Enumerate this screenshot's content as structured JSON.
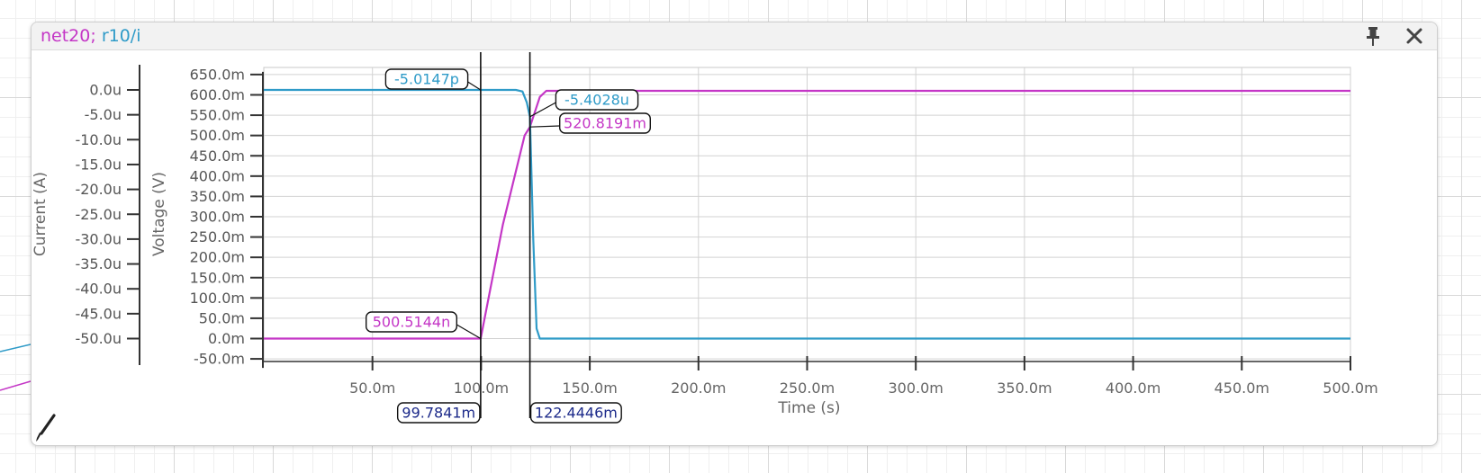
{
  "window": {
    "title_parts": [
      {
        "text": "net20",
        "color": "#c436c6"
      },
      {
        "text": "; ",
        "color": "#c436c6"
      },
      {
        "text": "r10/i",
        "color": "#2f9bc8"
      }
    ],
    "pin_icon": "pin-icon",
    "close_icon": "close-icon",
    "tool_icon": "brush-icon"
  },
  "colors": {
    "net20": "#c436c6",
    "r10_i": "#2f9bc8",
    "marker": "#1c2a8a",
    "cursor": "#111111",
    "grid": "#d2d2d2"
  },
  "chart_data": {
    "type": "line",
    "xlabel": "Time (s)",
    "ylabel_left": "Current (A)",
    "ylabel_right": "Voltage (V)",
    "grid": true,
    "x_range": [
      0,
      500
    ],
    "x_ticks": [
      {
        "v": 50,
        "label": "50.0m"
      },
      {
        "v": 100,
        "label": "100.0m"
      },
      {
        "v": 150,
        "label": "150.0m"
      },
      {
        "v": 200,
        "label": "200.0m"
      },
      {
        "v": 250,
        "label": "250.0m"
      },
      {
        "v": 300,
        "label": "300.0m"
      },
      {
        "v": 350,
        "label": "350.0m"
      },
      {
        "v": 400,
        "label": "400.0m"
      },
      {
        "v": 450,
        "label": "450.0m"
      },
      {
        "v": 500,
        "label": "500.0m"
      }
    ],
    "voltage_range": [
      -50,
      650
    ],
    "voltage_ticks": [
      {
        "v": 650,
        "label": "650.0m"
      },
      {
        "v": 600,
        "label": "600.0m"
      },
      {
        "v": 550,
        "label": "550.0m"
      },
      {
        "v": 500,
        "label": "500.0m"
      },
      {
        "v": 450,
        "label": "450.0m"
      },
      {
        "v": 400,
        "label": "400.0m"
      },
      {
        "v": 350,
        "label": "350.0m"
      },
      {
        "v": 300,
        "label": "300.0m"
      },
      {
        "v": 250,
        "label": "250.0m"
      },
      {
        "v": 200,
        "label": "200.0m"
      },
      {
        "v": 150,
        "label": "150.0m"
      },
      {
        "v": 100,
        "label": "100.0m"
      },
      {
        "v": 50,
        "label": "50.0m"
      },
      {
        "v": 0,
        "label": "0.0m"
      },
      {
        "v": -50,
        "label": "-50.0m"
      }
    ],
    "current_range": [
      -50,
      0
    ],
    "current_ticks": [
      {
        "v": 0,
        "label": "0.0u"
      },
      {
        "v": -5,
        "label": "-5.0u"
      },
      {
        "v": -10,
        "label": "-10.0u"
      },
      {
        "v": -15,
        "label": "-15.0u"
      },
      {
        "v": -20,
        "label": "-20.0u"
      },
      {
        "v": -25,
        "label": "-25.0u"
      },
      {
        "v": -30,
        "label": "-30.0u"
      },
      {
        "v": -35,
        "label": "-35.0u"
      },
      {
        "v": -40,
        "label": "-40.0u"
      },
      {
        "v": -45,
        "label": "-45.0u"
      },
      {
        "v": -50,
        "label": "-50.0u"
      }
    ],
    "series": [
      {
        "name": "net20",
        "axis": "voltage",
        "color": "#c436c6",
        "x": [
          0,
          99.78,
          110,
          120,
          122.44,
          127,
          130,
          500
        ],
        "y": [
          0,
          0,
          280,
          500,
          521,
          595,
          610,
          610
        ]
      },
      {
        "name": "r10/i",
        "axis": "current",
        "color": "#2f9bc8",
        "x": [
          0,
          116,
          119,
          121,
          122.44,
          124,
          125.5,
          127,
          500
        ],
        "y": [
          0,
          0,
          -0.3,
          -2.5,
          -5.4,
          -30,
          -48,
          -50,
          -50
        ]
      }
    ],
    "cursors": [
      {
        "x": 99.7841,
        "label": "99.7841m"
      },
      {
        "x": 122.4446,
        "label": "122.4446m"
      }
    ],
    "annotations": [
      {
        "label": "-5.0147p",
        "series": "r10/i"
      },
      {
        "label": "-5.4028u",
        "series": "r10/i"
      },
      {
        "label": "520.8191m",
        "series": "net20"
      },
      {
        "label": "500.5144n",
        "series": "net20"
      }
    ]
  }
}
